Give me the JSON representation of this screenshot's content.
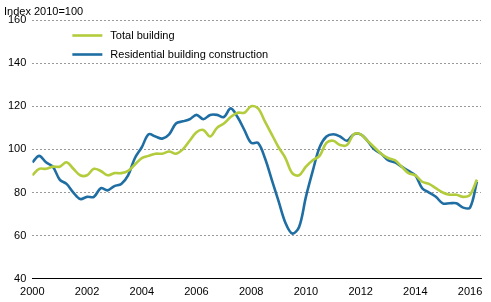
{
  "chart_data": {
    "type": "line",
    "ylabel": "Index 2010=100",
    "x": [
      2000,
      2000.25,
      2000.5,
      2000.75,
      2001,
      2001.25,
      2001.5,
      2001.75,
      2002,
      2002.25,
      2002.5,
      2002.75,
      2003,
      2003.25,
      2003.5,
      2003.75,
      2004,
      2004.25,
      2004.5,
      2004.75,
      2005,
      2005.25,
      2005.5,
      2005.75,
      2006,
      2006.25,
      2006.5,
      2006.75,
      2007,
      2007.25,
      2007.5,
      2007.75,
      2008,
      2008.25,
      2008.5,
      2008.75,
      2009,
      2009.25,
      2009.5,
      2009.75,
      2010,
      2010.25,
      2010.5,
      2010.75,
      2011,
      2011.25,
      2011.5,
      2011.75,
      2012,
      2012.25,
      2012.5,
      2012.75,
      2013,
      2013.25,
      2013.5,
      2013.75,
      2014,
      2014.25,
      2014.5,
      2014.75,
      2015,
      2015.25,
      2015.5,
      2015.75,
      2016,
      2016.25
    ],
    "series": [
      {
        "name": "Total building",
        "color": "#b2cc3c",
        "values": [
          88,
          91,
          91,
          92,
          92,
          94,
          91,
          88,
          88,
          91,
          90,
          88,
          89,
          89,
          90,
          93,
          96,
          97,
          98,
          98,
          99,
          98,
          100,
          104,
          108,
          109,
          106,
          110,
          112,
          115,
          117,
          117,
          120,
          119,
          113,
          107,
          101,
          96,
          89,
          88,
          92,
          95,
          97,
          103,
          104,
          102,
          102,
          107,
          107,
          104,
          101,
          98,
          96,
          95,
          92,
          89,
          88,
          85,
          84,
          82,
          80,
          79,
          79,
          78,
          79,
          86
        ]
      },
      {
        "name": "Residential building construction",
        "color": "#1f6ea3",
        "values": [
          94,
          97,
          94,
          92,
          86,
          84,
          80,
          77,
          78,
          78,
          82,
          81,
          83,
          84,
          88,
          96,
          101,
          107,
          106,
          105,
          107,
          112,
          113,
          114,
          116,
          114,
          116,
          116,
          115,
          119,
          115,
          109,
          103,
          103,
          96,
          86,
          76,
          66,
          61,
          64,
          78,
          90,
          101,
          106,
          107,
          106,
          104,
          107,
          107,
          104,
          100,
          98,
          95,
          94,
          92,
          90,
          88,
          82,
          80,
          78,
          75,
          75,
          75,
          73,
          73,
          85
        ]
      }
    ],
    "xlim": [
      2000,
      2016.4
    ],
    "xticks": [
      2000,
      2002,
      2004,
      2006,
      2008,
      2010,
      2012,
      2014,
      2016
    ],
    "ylim": [
      40,
      160
    ],
    "yticks": [
      40,
      60,
      80,
      100,
      120,
      140,
      160
    ],
    "grid": true,
    "legend": "upper left"
  }
}
